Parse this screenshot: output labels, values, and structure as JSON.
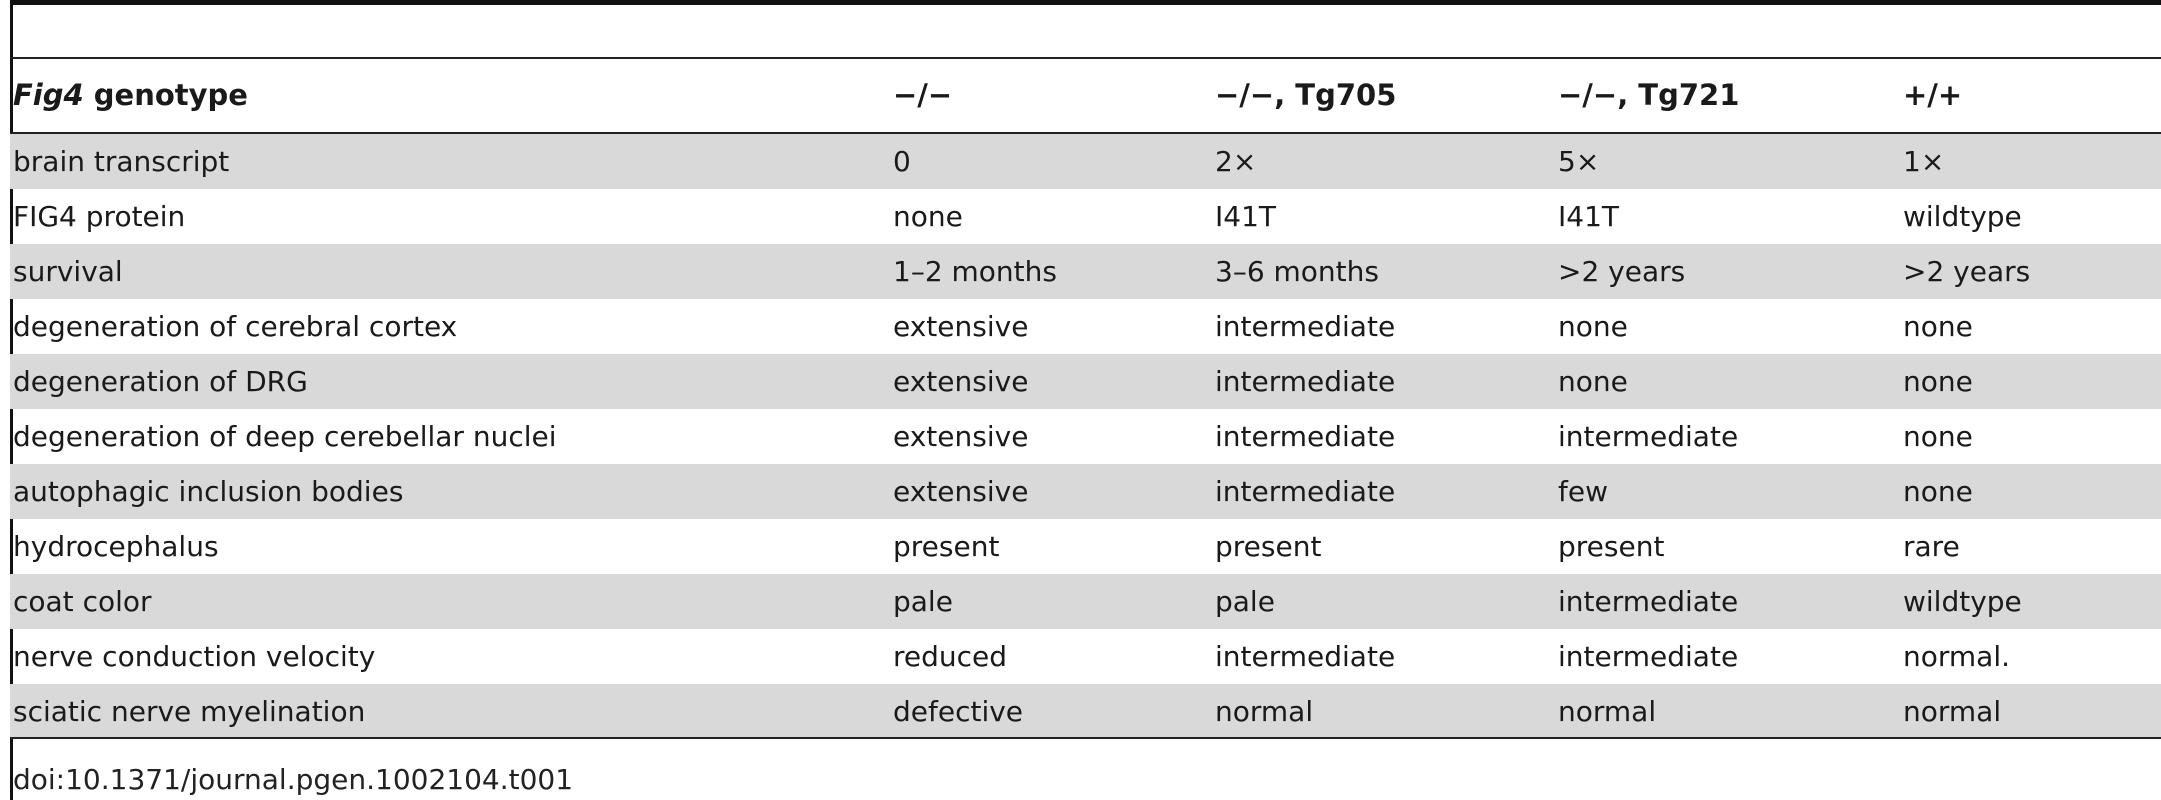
{
  "table": {
    "header": {
      "col0_italic": "Fig4",
      "col0_rest": " genotype",
      "col1": "−/−",
      "col2": "−/−, Tg705",
      "col3": "−/−, Tg721",
      "col4": "+/+"
    },
    "rows": [
      {
        "label": "brain transcript",
        "v1": "0",
        "v2": "2×",
        "v3": "5×",
        "v4": "1×"
      },
      {
        "label": "FIG4 protein",
        "v1": "none",
        "v2": "I41T",
        "v3": "I41T",
        "v4": "wildtype"
      },
      {
        "label": "survival",
        "v1": "1–2 months",
        "v2": "3–6 months",
        "v3": ">2 years",
        "v4": ">2 years"
      },
      {
        "label": "degeneration of cerebral cortex",
        "v1": "extensive",
        "v2": "intermediate",
        "v3": "none",
        "v4": "none"
      },
      {
        "label": "degeneration of DRG",
        "v1": "extensive",
        "v2": "intermediate",
        "v3": "none",
        "v4": "none"
      },
      {
        "label": "degeneration of deep cerebellar nuclei",
        "v1": "extensive",
        "v2": "intermediate",
        "v3": "intermediate",
        "v4": "none"
      },
      {
        "label": "autophagic inclusion bodies",
        "v1": "extensive",
        "v2": "intermediate",
        "v3": "few",
        "v4": "none"
      },
      {
        "label": "hydrocephalus",
        "v1": "present",
        "v2": "present",
        "v3": "present",
        "v4": "rare"
      },
      {
        "label": "coat color",
        "v1": "pale",
        "v2": "pale",
        "v3": "intermediate",
        "v4": "wildtype"
      },
      {
        "label": "nerve conduction velocity",
        "v1": "reduced",
        "v2": "intermediate",
        "v3": "intermediate",
        "v4": "normal."
      },
      {
        "label": "sciatic nerve myelination",
        "v1": "defective",
        "v2": "normal",
        "v3": "normal",
        "v4": "normal"
      }
    ]
  },
  "footer": {
    "doi": "doi:10.1371/journal.pgen.1002104.t001"
  }
}
